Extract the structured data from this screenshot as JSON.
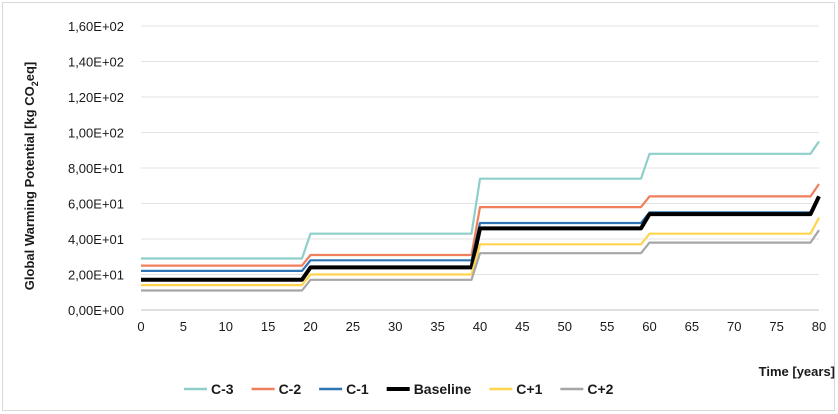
{
  "chart_data": {
    "type": "line",
    "xlabel": "Time [years]",
    "ylabel_parts": [
      "Global Warming Potential [kg CO",
      "2",
      "eq]"
    ],
    "ylim": [
      0,
      160
    ],
    "xlim": [
      0,
      80
    ],
    "x_ticks": [
      "0",
      "5",
      "10",
      "15",
      "20",
      "25",
      "30",
      "35",
      "40",
      "45",
      "50",
      "55",
      "60",
      "65",
      "70",
      "75",
      "80"
    ],
    "y_ticks": [
      "0,00E+00",
      "2,00E+01",
      "4,00E+01",
      "6,00E+01",
      "8,00E+01",
      "1,00E+02",
      "1,20E+02",
      "1,40E+02",
      "1,60E+02"
    ],
    "grid": "horizontal",
    "legend_position": "bottom",
    "x": [
      0,
      19,
      20,
      39,
      40,
      59,
      60,
      79,
      80
    ],
    "series": [
      {
        "name": "C-3",
        "color": "#8ecfca",
        "values": [
          29,
          29,
          43,
          43,
          74,
          74,
          88,
          88,
          95
        ]
      },
      {
        "name": "C-2",
        "color": "#f07f5c",
        "values": [
          25,
          25,
          31,
          31,
          58,
          58,
          64,
          64,
          71
        ]
      },
      {
        "name": "C-1",
        "color": "#2e75b6",
        "values": [
          22,
          22,
          28,
          28,
          49,
          49,
          55,
          55,
          64
        ]
      },
      {
        "name": "Baseline",
        "color": "#000000",
        "values": [
          17,
          17,
          24,
          24,
          46,
          46,
          54,
          54,
          64
        ]
      },
      {
        "name": "C+1",
        "color": "#ffd54f",
        "values": [
          14,
          14,
          20,
          20,
          37,
          37,
          43,
          43,
          52
        ]
      },
      {
        "name": "C+2",
        "color": "#a6a6a6",
        "values": [
          11,
          11,
          17,
          17,
          32,
          32,
          38,
          38,
          45
        ]
      }
    ]
  }
}
